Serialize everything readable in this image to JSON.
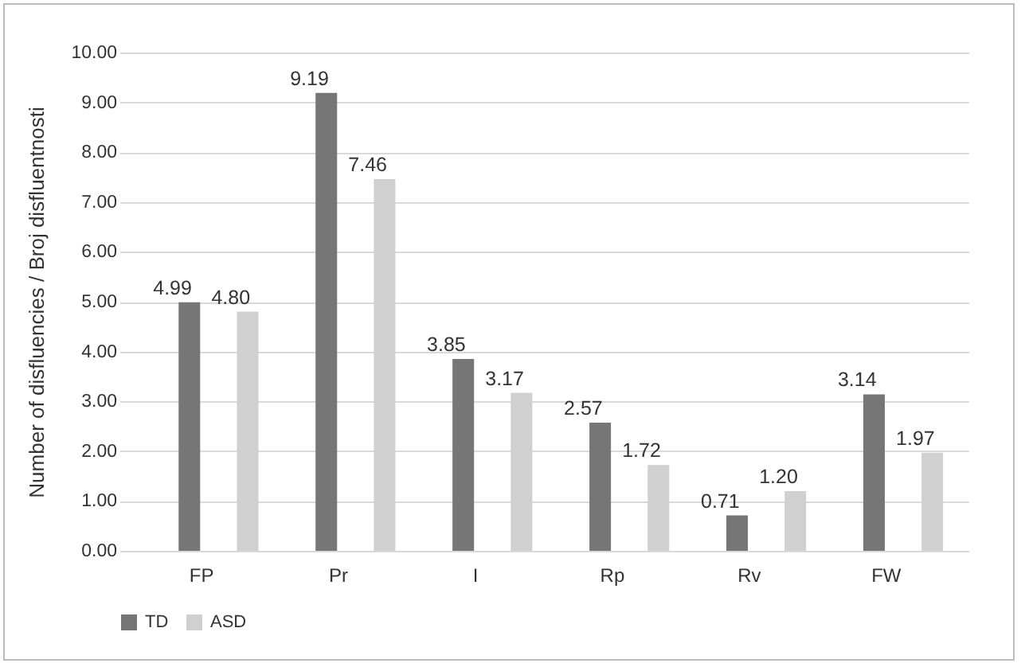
{
  "chart_data": {
    "type": "bar",
    "ylabel": "Number of disfluencies / Broj disfluentnosti",
    "categories": [
      "FP",
      "Pr",
      "I",
      "Rp",
      "Rv",
      "FW"
    ],
    "series": [
      {
        "name": "TD",
        "color": "#767676",
        "values": [
          4.99,
          9.19,
          3.85,
          2.57,
          0.71,
          3.14
        ],
        "value_labels": [
          "4.99",
          "9.19",
          "3.85",
          "2.57",
          "0.71",
          "3.14"
        ]
      },
      {
        "name": "ASD",
        "color": "#d0d0d0",
        "values": [
          4.8,
          7.46,
          3.17,
          1.72,
          1.2,
          1.97
        ],
        "value_labels": [
          "4.80",
          "7.46",
          "3.17",
          "1.72",
          "1.20",
          "1.97"
        ]
      }
    ],
    "ylim": [
      0,
      10
    ],
    "yticks": [
      {
        "value": 0,
        "label": "0.00"
      },
      {
        "value": 1,
        "label": "1.00"
      },
      {
        "value": 2,
        "label": "2.00"
      },
      {
        "value": 3,
        "label": "3.00"
      },
      {
        "value": 4,
        "label": "4.00"
      },
      {
        "value": 5,
        "label": "5.00"
      },
      {
        "value": 6,
        "label": "6.00"
      },
      {
        "value": 7,
        "label": "7.00"
      },
      {
        "value": 8,
        "label": "8.00"
      },
      {
        "value": 9,
        "label": "9.00"
      },
      {
        "value": 10,
        "label": "10.00"
      }
    ],
    "grid": "y",
    "legend": "bottom"
  }
}
